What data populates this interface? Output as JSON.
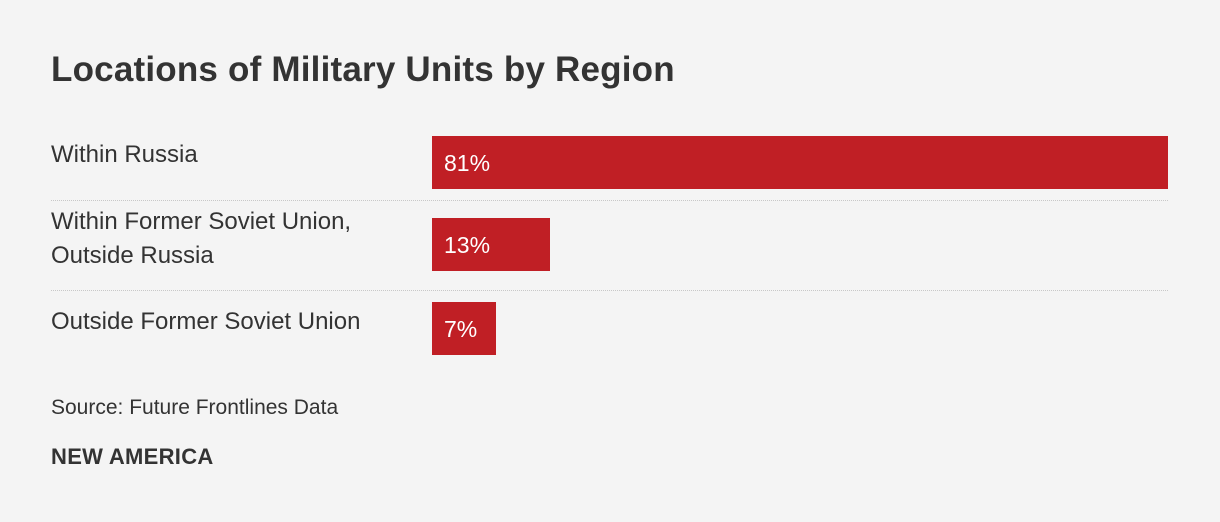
{
  "chart_data": {
    "type": "bar",
    "orientation": "horizontal",
    "title": "Locations of Military Units by Region",
    "xlabel": "",
    "ylabel": "",
    "xlim": [
      0,
      81
    ],
    "categories": [
      "Within Russia",
      "Within Former Soviet Union,\nOutside Russia",
      "Outside Former Soviet Union"
    ],
    "values": [
      81,
      13,
      7
    ],
    "value_labels": [
      "81%",
      "13%",
      "7%"
    ],
    "unit": "%",
    "grid": false,
    "bar_color": "#c01f25"
  },
  "footer": {
    "source": "Source: Future Frontlines Data",
    "brand": "NEW AMERICA"
  },
  "colors": {
    "background": "#f4f4f4",
    "bar": "#c01f25",
    "text": "#333333"
  }
}
